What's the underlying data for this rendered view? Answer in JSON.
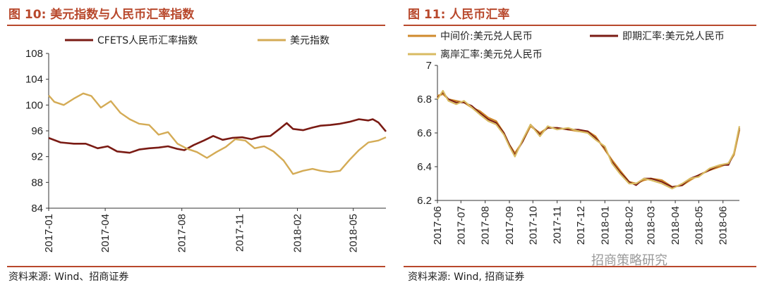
{
  "left": {
    "title": "图 10:  美元指数与人民币汇率指数",
    "source": "资料来源: Wind、招商证券",
    "chart_data": {
      "type": "line",
      "title": "图 10:  美元指数与人民币汇率指数",
      "xlabel": "",
      "ylabel": "",
      "xlim": [
        "2017-01-01",
        "2018-06-22"
      ],
      "ylim": [
        84,
        108
      ],
      "yticks": [
        "84",
        "88",
        "92",
        "96",
        "100",
        "104",
        "108"
      ],
      "xticks": [
        {
          "date": "2017-01-01",
          "label": "2017-01"
        },
        {
          "date": "2017-04-01",
          "label": "2017-04"
        },
        {
          "date": "2017-08-01",
          "label": "2017-08"
        },
        {
          "date": "2017-11-01",
          "label": "2017-11"
        },
        {
          "date": "2018-02-01",
          "label": "2018-02"
        },
        {
          "date": "2018-05-01",
          "label": "2018-05"
        }
      ],
      "grid": false,
      "legend_position": "top",
      "series": [
        {
          "name": "CFETS人民币汇率指数",
          "color": "#7a1b14",
          "x": [
            "2017-01-01",
            "2017-01-20",
            "2017-02-10",
            "2017-03-01",
            "2017-03-20",
            "2017-04-05",
            "2017-04-20",
            "2017-05-10",
            "2017-05-25",
            "2017-06-10",
            "2017-06-25",
            "2017-07-10",
            "2017-07-25",
            "2017-08-05",
            "2017-08-20",
            "2017-09-05",
            "2017-09-20",
            "2017-10-05",
            "2017-10-20",
            "2017-11-05",
            "2017-11-20",
            "2017-12-05",
            "2017-12-20",
            "2018-01-05",
            "2018-01-15",
            "2018-01-25",
            "2018-02-10",
            "2018-02-25",
            "2018-03-10",
            "2018-03-25",
            "2018-04-10",
            "2018-04-25",
            "2018-05-10",
            "2018-05-25",
            "2018-06-01",
            "2018-06-10",
            "2018-06-22"
          ],
          "y": [
            94.9,
            94.2,
            94.0,
            94.0,
            93.3,
            93.6,
            92.8,
            92.6,
            93.1,
            93.3,
            93.4,
            93.6,
            93.2,
            93.0,
            93.8,
            94.5,
            95.2,
            94.6,
            94.9,
            95.0,
            94.7,
            95.1,
            95.2,
            96.4,
            97.2,
            96.3,
            96.1,
            96.5,
            96.8,
            96.9,
            97.1,
            97.4,
            97.8,
            97.6,
            97.8,
            97.3,
            95.9
          ]
        },
        {
          "name": "美元指数",
          "color": "#d4ab55",
          "x": [
            "2017-01-01",
            "2017-01-10",
            "2017-01-25",
            "2017-02-10",
            "2017-02-25",
            "2017-03-10",
            "2017-03-25",
            "2017-04-10",
            "2017-04-25",
            "2017-05-10",
            "2017-05-25",
            "2017-06-10",
            "2017-06-25",
            "2017-07-10",
            "2017-07-25",
            "2017-08-10",
            "2017-08-25",
            "2017-09-10",
            "2017-09-25",
            "2017-10-10",
            "2017-10-25",
            "2017-11-10",
            "2017-11-25",
            "2017-12-10",
            "2017-12-25",
            "2018-01-10",
            "2018-01-25",
            "2018-02-10",
            "2018-02-25",
            "2018-03-10",
            "2018-03-25",
            "2018-04-10",
            "2018-04-25",
            "2018-05-10",
            "2018-05-25",
            "2018-06-10",
            "2018-06-22"
          ],
          "y": [
            101.5,
            100.5,
            100.0,
            101.0,
            101.8,
            101.4,
            99.6,
            100.6,
            98.8,
            97.8,
            97.1,
            96.9,
            95.4,
            95.8,
            94.0,
            93.2,
            92.7,
            91.8,
            92.7,
            93.5,
            94.7,
            94.5,
            93.3,
            93.6,
            92.8,
            91.4,
            89.3,
            89.8,
            90.1,
            89.8,
            89.6,
            89.8,
            91.5,
            93.0,
            94.2,
            94.5,
            95.0
          ]
        }
      ]
    }
  },
  "right": {
    "title": "图 11:  人民币汇率",
    "source": "资料来源: Wind,  招商证券",
    "chart_data": {
      "type": "line",
      "title": "图 11:  人民币汇率",
      "xlabel": "",
      "ylabel": "",
      "xlim": [
        "2017-06-01",
        "2018-06-22"
      ],
      "ylim": [
        6.2,
        7.0
      ],
      "yticks": [
        "6.2",
        "6.4",
        "6.6",
        "6.8",
        "7"
      ],
      "xticks": [
        {
          "date": "2017-06-01",
          "label": "2017-06"
        },
        {
          "date": "2017-07-01",
          "label": "2017-07"
        },
        {
          "date": "2017-08-01",
          "label": "2017-08"
        },
        {
          "date": "2017-09-01",
          "label": "2017-09"
        },
        {
          "date": "2017-10-01",
          "label": "2017-10"
        },
        {
          "date": "2017-11-01",
          "label": "2017-11"
        },
        {
          "date": "2017-12-01",
          "label": "2017-12"
        },
        {
          "date": "2018-01-01",
          "label": "2018-01"
        },
        {
          "date": "2018-02-01",
          "label": "2018-02"
        },
        {
          "date": "2018-03-01",
          "label": "2018-03"
        },
        {
          "date": "2018-04-01",
          "label": "2018-04"
        },
        {
          "date": "2018-05-01",
          "label": "2018-05"
        },
        {
          "date": "2018-06-01",
          "label": "2018-06"
        }
      ],
      "grid": false,
      "legend_position": "top",
      "series": [
        {
          "name": "中间价:美元兑人民币",
          "color": "#cf8a2c",
          "x": [
            "2017-06-01",
            "2017-06-08",
            "2017-06-15",
            "2017-06-25",
            "2017-07-05",
            "2017-07-15",
            "2017-07-25",
            "2017-08-05",
            "2017-08-15",
            "2017-08-25",
            "2017-09-01",
            "2017-09-08",
            "2017-09-18",
            "2017-09-28",
            "2017-10-10",
            "2017-10-20",
            "2017-11-01",
            "2017-11-15",
            "2017-11-28",
            "2017-12-10",
            "2017-12-20",
            "2018-01-01",
            "2018-01-10",
            "2018-01-20",
            "2018-02-01",
            "2018-02-10",
            "2018-02-20",
            "2018-03-01",
            "2018-03-15",
            "2018-03-28",
            "2018-04-10",
            "2018-04-20",
            "2018-05-01",
            "2018-05-15",
            "2018-05-28",
            "2018-06-08",
            "2018-06-15",
            "2018-06-22"
          ],
          "y": [
            6.82,
            6.83,
            6.8,
            6.79,
            6.78,
            6.75,
            6.73,
            6.69,
            6.67,
            6.6,
            6.53,
            6.48,
            6.55,
            6.64,
            6.6,
            6.63,
            6.63,
            6.62,
            6.61,
            6.61,
            6.58,
            6.5,
            6.44,
            6.38,
            6.31,
            6.3,
            6.32,
            6.33,
            6.32,
            6.28,
            6.29,
            6.32,
            6.35,
            6.38,
            6.4,
            6.42,
            6.47,
            6.62
          ]
        },
        {
          "name": "即期汇率:美元兑人民币",
          "color": "#7a1b14",
          "x": [
            "2017-06-01",
            "2017-06-08",
            "2017-06-15",
            "2017-06-25",
            "2017-07-05",
            "2017-07-15",
            "2017-07-25",
            "2017-08-05",
            "2017-08-15",
            "2017-08-25",
            "2017-09-01",
            "2017-09-08",
            "2017-09-18",
            "2017-09-28",
            "2017-10-10",
            "2017-10-20",
            "2017-11-01",
            "2017-11-15",
            "2017-11-28",
            "2017-12-10",
            "2017-12-20",
            "2018-01-01",
            "2018-01-10",
            "2018-01-20",
            "2018-02-01",
            "2018-02-10",
            "2018-02-20",
            "2018-03-01",
            "2018-03-15",
            "2018-03-28",
            "2018-04-10",
            "2018-04-20",
            "2018-05-01",
            "2018-05-15",
            "2018-05-28",
            "2018-06-08",
            "2018-06-15",
            "2018-06-22"
          ],
          "y": [
            6.81,
            6.84,
            6.8,
            6.78,
            6.78,
            6.76,
            6.72,
            6.68,
            6.66,
            6.6,
            6.53,
            6.47,
            6.55,
            6.65,
            6.59,
            6.63,
            6.63,
            6.62,
            6.62,
            6.61,
            6.57,
            6.51,
            6.43,
            6.37,
            6.31,
            6.29,
            6.33,
            6.33,
            6.31,
            6.28,
            6.29,
            6.33,
            6.35,
            6.38,
            6.41,
            6.41,
            6.48,
            6.63
          ]
        },
        {
          "name": "离岸汇率:美元兑人民币",
          "color": "#d8bb62",
          "x": [
            "2017-06-01",
            "2017-06-08",
            "2017-06-15",
            "2017-06-25",
            "2017-07-05",
            "2017-07-15",
            "2017-07-25",
            "2017-08-05",
            "2017-08-15",
            "2017-08-25",
            "2017-09-01",
            "2017-09-08",
            "2017-09-18",
            "2017-09-28",
            "2017-10-10",
            "2017-10-20",
            "2017-11-01",
            "2017-11-15",
            "2017-11-28",
            "2017-12-10",
            "2017-12-20",
            "2018-01-01",
            "2018-01-10",
            "2018-01-20",
            "2018-02-01",
            "2018-02-10",
            "2018-02-20",
            "2018-03-01",
            "2018-03-15",
            "2018-03-28",
            "2018-04-10",
            "2018-04-20",
            "2018-05-01",
            "2018-05-15",
            "2018-05-28",
            "2018-06-08",
            "2018-06-15",
            "2018-06-22"
          ],
          "y": [
            6.8,
            6.85,
            6.79,
            6.77,
            6.79,
            6.75,
            6.71,
            6.67,
            6.65,
            6.59,
            6.52,
            6.46,
            6.56,
            6.65,
            6.58,
            6.64,
            6.62,
            6.63,
            6.61,
            6.6,
            6.56,
            6.52,
            6.42,
            6.36,
            6.3,
            6.3,
            6.33,
            6.32,
            6.3,
            6.27,
            6.3,
            6.33,
            6.34,
            6.39,
            6.41,
            6.42,
            6.48,
            6.64
          ]
        }
      ]
    }
  },
  "watermark": "招商策略研究"
}
